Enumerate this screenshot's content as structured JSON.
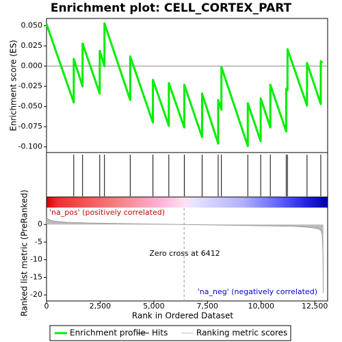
{
  "chart_data": [
    {
      "type": "line",
      "title": "Enrichment plot: CELL_CORTEX_PART",
      "ylabel": "Enrichment score (ES)",
      "x": [
        0,
        1270,
        1270,
        1680,
        1680,
        2480,
        2480,
        2700,
        2700,
        3900,
        3900,
        4960,
        4960,
        5700,
        5700,
        6420,
        6420,
        7250,
        7250,
        8000,
        8000,
        8150,
        8150,
        9380,
        9380,
        9980,
        9980,
        10430,
        10430,
        11170,
        11170,
        11230,
        11230,
        12140,
        12140,
        12780,
        12780,
        12850
      ],
      "series": [
        {
          "name": "Enrichment profile",
          "color": "#00ee00",
          "values": [
            0.052,
            -0.045,
            0.009,
            -0.025,
            0.028,
            -0.034,
            0.019,
            0.0,
            0.053,
            -0.042,
            0.012,
            -0.07,
            -0.017,
            -0.074,
            -0.021,
            -0.076,
            -0.023,
            -0.088,
            -0.034,
            -0.096,
            -0.042,
            -0.054,
            -0.001,
            -0.099,
            -0.046,
            -0.093,
            -0.04,
            -0.076,
            -0.023,
            -0.081,
            -0.028,
            -0.03,
            0.021,
            -0.049,
            0.004,
            -0.047,
            0.006,
            0.004
          ]
        }
      ],
      "xlim": [
        0,
        13100
      ],
      "ylim": [
        -0.107,
        0.059
      ],
      "yticks": [
        {
          "value": 0.05,
          "label": "0.050"
        },
        {
          "value": 0.025,
          "label": "0.025"
        },
        {
          "value": 0,
          "label": "0.000"
        },
        {
          "value": -0.025,
          "label": "-0.025"
        },
        {
          "value": -0.05,
          "label": "-0.050"
        },
        {
          "value": -0.075,
          "label": "-0.075"
        },
        {
          "value": -0.1,
          "label": "-0.100"
        }
      ]
    },
    {
      "type": "hits",
      "series": [
        {
          "name": "Hits",
          "color": "#000000"
        }
      ],
      "x": [
        1270,
        1680,
        2480,
        2700,
        3900,
        4960,
        5700,
        6420,
        7250,
        8000,
        8150,
        9380,
        9980,
        10430,
        11170,
        11230,
        12140,
        12780
      ],
      "xlim": [
        0,
        13100
      ]
    },
    {
      "type": "area",
      "ylabel": "Ranked list metric (PreRanked)",
      "xlabel": "Rank in Ordered Dataset",
      "series": [
        {
          "name": "Ranking metric scores",
          "color": "#bbbbbb",
          "values": [
            2.0,
            1.4,
            1.0,
            0.8,
            0.6,
            0.4,
            0.3,
            0.2,
            0.1,
            0,
            -0.1,
            -0.2,
            -0.3,
            -0.4,
            -0.5,
            -0.7,
            -0.9,
            -1.3,
            -1.8,
            -3,
            -8,
            -19.5
          ]
        }
      ],
      "x": [
        0,
        100,
        300,
        600,
        1000,
        2000,
        3000,
        4000,
        5000,
        6412,
        7500,
        8500,
        9500,
        10500,
        11500,
        12000,
        12400,
        12700,
        12800,
        12850,
        12880,
        12900
      ],
      "xlim": [
        0,
        13100
      ],
      "ylim": [
        -21.7,
        7.8
      ],
      "yticks": [
        0,
        -5,
        -10,
        -15,
        -20
      ],
      "xticks": [
        0,
        {
          "value": 2500,
          "label": "2,500"
        },
        {
          "value": 5000,
          "label": "5,000"
        },
        {
          "value": 7500,
          "label": "7,500"
        },
        {
          "value": 10000,
          "label": "10,000"
        },
        {
          "value": 12500,
          "label": "12,500"
        }
      ],
      "zero_cross": 6412,
      "annotations": [
        "'na_pos' (positively correlated)",
        "Zero cross at 6412",
        "'na_neg' (negatively correlated)"
      ]
    }
  ]
}
